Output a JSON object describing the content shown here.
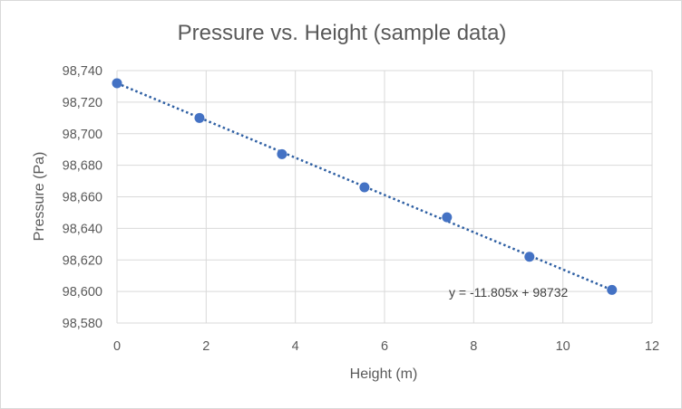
{
  "chart_data": {
    "type": "scatter",
    "title": "Pressure vs. Height (sample data)",
    "xlabel": "Height (m)",
    "ylabel": "Pressure (Pa)",
    "xlim": [
      0,
      12
    ],
    "ylim": [
      98580,
      98740
    ],
    "x_ticks": [
      "0",
      "2",
      "4",
      "6",
      "8",
      "10",
      "12"
    ],
    "y_ticks": [
      "98,580",
      "98,600",
      "98,620",
      "98,640",
      "98,660",
      "98,680",
      "98,700",
      "98,720",
      "98,740"
    ],
    "grid": true,
    "points": [
      {
        "x": 0,
        "y": 98732
      },
      {
        "x": 1.85,
        "y": 98710
      },
      {
        "x": 3.7,
        "y": 98687
      },
      {
        "x": 5.55,
        "y": 98666
      },
      {
        "x": 7.4,
        "y": 98647
      },
      {
        "x": 9.25,
        "y": 98622
      },
      {
        "x": 11.1,
        "y": 98601
      }
    ],
    "trendline": {
      "type": "linear",
      "slope": -11.805,
      "intercept": 98732,
      "equation_label": "y = -11.805x + 98732"
    },
    "colors": {
      "marker": "#4472c4",
      "trendline": "#2e5fa3",
      "grid": "#d9d9d9",
      "text": "#595959"
    }
  }
}
